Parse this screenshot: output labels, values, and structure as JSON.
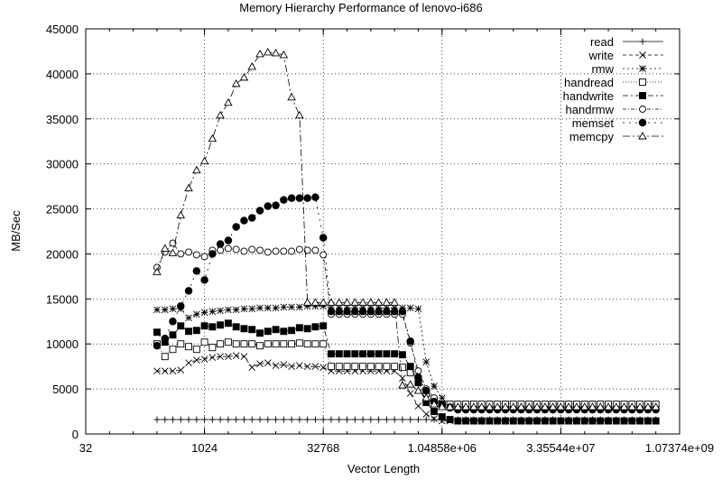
{
  "chart_data": {
    "type": "line",
    "title": "Memory Hierarchy Performance of lenovo-i686",
    "xlabel": "Vector Length",
    "ylabel": "MB/Sec",
    "xscale": "log2",
    "xlim": [
      32,
      1073741824
    ],
    "ylim": [
      0,
      45000
    ],
    "grid": true,
    "legend_position": "top-right",
    "x_tick_labels": [
      "32",
      "1024",
      "32768",
      "1.04858e+06",
      "3.35544e+07",
      "1.07374e+09"
    ],
    "x_tick_values": [
      32,
      1024,
      32768,
      1048576,
      33554432,
      1073741824
    ],
    "y_tick_labels": [
      "0",
      "5000",
      "10000",
      "15000",
      "20000",
      "25000",
      "30000",
      "35000",
      "40000",
      "45000"
    ],
    "x": [
      256,
      323,
      406,
      512,
      645,
      813,
      1024,
      1290,
      1625,
      2048,
      2580,
      3251,
      4096,
      5161,
      6502,
      8192,
      10321,
      13004,
      16384,
      20643,
      26008,
      32768,
      41285,
      52016,
      65536,
      82570,
      104032,
      131072,
      165140,
      208064,
      262144,
      330281,
      416128,
      524288,
      660561,
      832255,
      1048576,
      1321123,
      1664511,
      2097152,
      2642246,
      3329021,
      4194304,
      5284492,
      6658043,
      8388608,
      10568984,
      13316085,
      16777216,
      21137968,
      26632170,
      33554432,
      42275936,
      53264341,
      67108864,
      84551872,
      106528681,
      134217728,
      169103744,
      213057363,
      268435456,
      338207488,
      426114725,
      536870912
    ],
    "series": [
      {
        "name": "read",
        "marker": "plus",
        "dash": "none",
        "values": [
          1600,
          1600,
          1600,
          1600,
          1600,
          1600,
          1600,
          1600,
          1600,
          1600,
          1600,
          1600,
          1600,
          1600,
          1600,
          1600,
          1600,
          1600,
          1600,
          1600,
          1600,
          1600,
          1600,
          1600,
          1600,
          1600,
          1600,
          1600,
          1600,
          1600,
          1600,
          1600,
          1600,
          1600,
          1600,
          1600,
          1600,
          1600,
          1600,
          1600,
          1600,
          1600,
          1600,
          1600,
          1600,
          1600,
          1600,
          1600,
          1600,
          1600,
          1600,
          1600,
          1600,
          1600,
          1600,
          1600,
          1600,
          1600,
          1600,
          1600,
          1600,
          1600,
          1600,
          1600
        ]
      },
      {
        "name": "write",
        "marker": "cross",
        "dash": "4,3",
        "values": [
          7000,
          7000,
          7000,
          7100,
          7900,
          8200,
          8300,
          8500,
          8600,
          8600,
          8700,
          8600,
          7400,
          7800,
          7900,
          7600,
          7700,
          7500,
          7600,
          7500,
          7500,
          7400,
          7000,
          7000,
          7000,
          7000,
          7000,
          7000,
          7000,
          7000,
          7000,
          6200,
          4500,
          3100,
          2200,
          1700,
          1450,
          1450,
          1450,
          1450,
          1450,
          1450,
          1450,
          1450,
          1450,
          1450,
          1450,
          1450,
          1450,
          1450,
          1450,
          1450,
          1450,
          1450,
          1450,
          1450,
          1450,
          1450,
          1450,
          1450,
          1450,
          1450,
          1450,
          1450
        ]
      },
      {
        "name": "rmw",
        "marker": "star",
        "dash": "2,3",
        "values": [
          13800,
          13800,
          13900,
          13900,
          12900,
          13300,
          13500,
          13600,
          13700,
          13800,
          13800,
          13900,
          13900,
          14000,
          14000,
          14000,
          14100,
          14100,
          14100,
          14200,
          14200,
          14200,
          14000,
          14000,
          14000,
          14000,
          14000,
          14000,
          14000,
          14000,
          14000,
          14000,
          14000,
          13900,
          8000,
          5300,
          4000,
          3300,
          2900,
          2900,
          2900,
          2900,
          2900,
          2900,
          2900,
          2900,
          2900,
          2900,
          2900,
          2900,
          2900,
          2900,
          2900,
          2900,
          2900,
          2900,
          2900,
          2900,
          2900,
          2900,
          2900,
          2900,
          2900,
          2900
        ]
      },
      {
        "name": "handread",
        "marker": "square-open",
        "dash": "1,2",
        "values": [
          10000,
          8600,
          9400,
          10000,
          9700,
          9400,
          10200,
          9600,
          10000,
          10200,
          10000,
          10000,
          10000,
          9800,
          10000,
          10000,
          10000,
          10000,
          10100,
          10000,
          10000,
          10000,
          7500,
          7500,
          7500,
          7500,
          7500,
          7500,
          7500,
          7500,
          7500,
          7400,
          6800,
          5800,
          4500,
          3700,
          3300,
          3300,
          3300,
          3300,
          3300,
          3300,
          3300,
          3300,
          3300,
          3300,
          3300,
          3300,
          3300,
          3300,
          3300,
          3300,
          3300,
          3300,
          3300,
          3300,
          3300,
          3300,
          3300,
          3300,
          3300,
          3300,
          3300,
          3300
        ]
      },
      {
        "name": "handwrite",
        "marker": "square-filled",
        "dash": "6,3,2,3",
        "values": [
          11300,
          10200,
          11000,
          12000,
          11400,
          11500,
          12000,
          11900,
          12100,
          12300,
          11900,
          11700,
          11600,
          11200,
          11400,
          11600,
          11400,
          11500,
          11800,
          11700,
          11900,
          12000,
          8900,
          8900,
          8900,
          8900,
          8900,
          8900,
          8900,
          8900,
          8900,
          8800,
          7500,
          5700,
          3500,
          2500,
          1900,
          1600,
          1450,
          1450,
          1450,
          1450,
          1450,
          1450,
          1450,
          1450,
          1450,
          1450,
          1450,
          1450,
          1450,
          1450,
          1450,
          1450,
          1450,
          1450,
          1450,
          1450,
          1450,
          1450,
          1450,
          1450,
          1450,
          1450
        ]
      },
      {
        "name": "handrmw",
        "marker": "circle-open",
        "dash": "4,2,1,2",
        "values": [
          18500,
          20200,
          21200,
          20000,
          20200,
          19900,
          19700,
          20400,
          20400,
          20600,
          20500,
          20300,
          20500,
          20400,
          20200,
          20300,
          20300,
          20300,
          20500,
          20400,
          20400,
          19900,
          13300,
          13300,
          13300,
          13300,
          13300,
          13300,
          13300,
          13300,
          13300,
          13300,
          10100,
          7000,
          5000,
          4000,
          3300,
          3000,
          2800,
          2800,
          2800,
          2800,
          2800,
          2800,
          2800,
          2800,
          2800,
          2800,
          2800,
          2800,
          2800,
          2800,
          2800,
          2800,
          2800,
          2800,
          2800,
          2800,
          2800,
          2800,
          2800,
          2800,
          2800,
          2800
        ]
      },
      {
        "name": "memset",
        "marker": "circle-filled",
        "dash": "2,5",
        "values": [
          9800,
          10600,
          12500,
          14200,
          15900,
          18100,
          17100,
          20000,
          21100,
          21500,
          23000,
          23700,
          24000,
          24800,
          25300,
          25400,
          26000,
          26200,
          26200,
          26200,
          26300,
          21800,
          13600,
          13600,
          13600,
          13600,
          13600,
          13600,
          13600,
          13600,
          13600,
          13600,
          10300,
          6300,
          4800,
          3600,
          3200,
          2900,
          2700,
          2700,
          2700,
          2700,
          2700,
          2700,
          2700,
          2700,
          2700,
          2700,
          2700,
          2700,
          2700,
          2700,
          2700,
          2700,
          2700,
          2700,
          2700,
          2700,
          2700,
          2700,
          2700,
          2700,
          2700,
          2700
        ]
      },
      {
        "name": "memcpy",
        "marker": "triangle-open",
        "dash": "8,3,2,3",
        "values": [
          18000,
          20600,
          20100,
          24300,
          27300,
          29300,
          30300,
          32800,
          35400,
          36800,
          38900,
          39600,
          40800,
          42200,
          42400,
          42300,
          42100,
          37400,
          35400,
          14600,
          14600,
          14600,
          14600,
          14600,
          14600,
          14600,
          14600,
          14600,
          14600,
          14600,
          14600,
          5400,
          5500,
          4800,
          4000,
          3300,
          3000,
          3000,
          3000,
          3000,
          3000,
          3000,
          3000,
          3000,
          3000,
          3000,
          3000,
          3000,
          3000,
          3000,
          3000,
          3000,
          3000,
          3000,
          3000,
          3000,
          3000,
          3000,
          3000,
          3000,
          3000,
          3000,
          3000,
          3000
        ]
      }
    ]
  }
}
